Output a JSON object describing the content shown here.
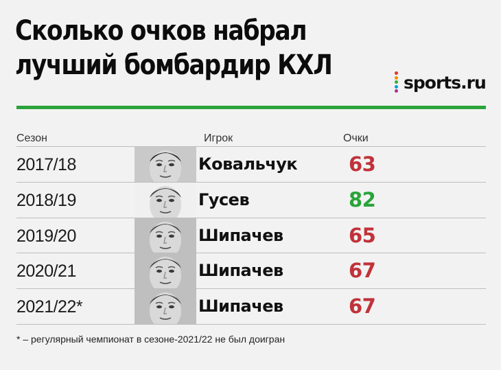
{
  "title": {
    "line1": "Сколько очков набрал",
    "line2": "лучший бомбардир КХЛ"
  },
  "brand": {
    "name": "sports.ru",
    "dot_colors": [
      "#e6332a",
      "#f39200",
      "#3aaa35",
      "#009fe3",
      "#a4358b"
    ]
  },
  "accent_color": "#2aa43a",
  "table": {
    "headers": {
      "season": "Сезон",
      "player": "Игрок",
      "points": "Очки"
    },
    "rows": [
      {
        "season": "2017/18",
        "player": "Ковальчук",
        "points": "63",
        "points_color": "#c0323a",
        "photo": "player-photo-kovalchuk"
      },
      {
        "season": "2018/19",
        "player": "Гусев",
        "points": "82",
        "points_color": "#2aa43a",
        "photo": "player-photo-gusev"
      },
      {
        "season": "2019/20",
        "player": "Шипачев",
        "points": "65",
        "points_color": "#c0323a",
        "photo": "player-photo-shipachev"
      },
      {
        "season": "2020/21",
        "player": "Шипачев",
        "points": "67",
        "points_color": "#c0323a",
        "photo": "player-photo-shipachev"
      },
      {
        "season": "2021/22*",
        "player": "Шипачев",
        "points": "67",
        "points_color": "#c0323a",
        "photo": "player-photo-shipachev"
      }
    ]
  },
  "footnote": "* – регулярный чемпионат в сезоне-2021/22 не был доигран"
}
